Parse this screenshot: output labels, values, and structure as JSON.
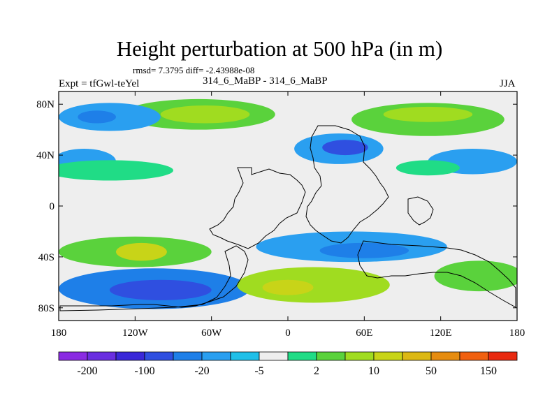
{
  "title": "Height perturbation at 500 hPa (in m)",
  "stats_line": "rmsd= 7.3795  diff= -2.43988e-08",
  "left_label": "Expt = tfGwl-teYel",
  "center_label": "314_6_MaBP - 314_6_MaBP",
  "right_label": "JJA",
  "chart_data": {
    "type": "heatmap",
    "title": "Height perturbation at 500 hPa (in m)",
    "xlabel": "",
    "ylabel": "",
    "xlim": [
      -180,
      180
    ],
    "ylim": [
      -90,
      90
    ],
    "x_ticks": [
      {
        "value": -180,
        "label": "180"
      },
      {
        "value": -120,
        "label": "120W"
      },
      {
        "value": -60,
        "label": "60W"
      },
      {
        "value": 0,
        "label": "0"
      },
      {
        "value": 60,
        "label": "60E"
      },
      {
        "value": 120,
        "label": "120E"
      },
      {
        "value": 180,
        "label": "180"
      }
    ],
    "y_ticks": [
      {
        "value": 80,
        "label": "80N"
      },
      {
        "value": 40,
        "label": "40N"
      },
      {
        "value": 0,
        "label": "0"
      },
      {
        "value": -40,
        "label": "40S"
      },
      {
        "value": -80,
        "label": "80S"
      }
    ],
    "colorbar": {
      "colors": [
        "#8a2be2",
        "#6a2ee0",
        "#3a28d8",
        "#2f4fe0",
        "#1e7fe8",
        "#2a9ff0",
        "#1fbfe8",
        "#eeeeee",
        "#20dc86",
        "#5ad23c",
        "#a0dc20",
        "#c8d418",
        "#dcb814",
        "#e68c10",
        "#f06010",
        "#e82a10"
      ],
      "labels": [
        {
          "after_index": 0,
          "text": "-200"
        },
        {
          "after_index": 2,
          "text": "-100"
        },
        {
          "after_index": 4,
          "text": "-20"
        },
        {
          "after_index": 6,
          "text": "-5"
        },
        {
          "after_index": 8,
          "text": "2"
        },
        {
          "after_index": 10,
          "text": "10"
        },
        {
          "after_index": 12,
          "text": "50"
        },
        {
          "after_index": 14,
          "text": "150"
        }
      ]
    },
    "anomaly_regions": [
      {
        "name": "nh-arctic-positive",
        "lon": -70,
        "lat": 72,
        "rlon": 60,
        "rlat": 12,
        "level": 9
      },
      {
        "name": "nh-arctic-positive-core",
        "lon": -65,
        "lat": 72,
        "rlon": 35,
        "rlat": 7,
        "level": 10
      },
      {
        "name": "nh-pacific-negative",
        "lon": -140,
        "lat": 70,
        "rlon": 40,
        "rlat": 11,
        "level": 5
      },
      {
        "name": "nh-pacific-negative-core",
        "lon": -150,
        "lat": 70,
        "rlon": 15,
        "rlat": 5,
        "level": 4
      },
      {
        "name": "nh-eurasia-positive",
        "lon": 110,
        "lat": 68,
        "rlon": 60,
        "rlat": 13,
        "level": 9
      },
      {
        "name": "nh-eurasia-positive-core",
        "lon": 110,
        "lat": 72,
        "rlon": 35,
        "rlat": 6,
        "level": 10
      },
      {
        "name": "nh-north-atlantic-negative",
        "lon": 40,
        "lat": 45,
        "rlon": 35,
        "rlat": 12,
        "level": 5
      },
      {
        "name": "nh-north-atlantic-negative-core",
        "lon": 45,
        "lat": 46,
        "rlon": 18,
        "rlat": 6,
        "level": 3
      },
      {
        "name": "nh-west-pacific-negative",
        "lon": -160,
        "lat": 35,
        "rlon": 25,
        "rlat": 10,
        "level": 5
      },
      {
        "name": "nh-midlat-positive",
        "lon": -140,
        "lat": 28,
        "rlon": 50,
        "rlat": 8,
        "level": 8
      },
      {
        "name": "nh-east-asia-negative",
        "lon": 145,
        "lat": 35,
        "rlon": 35,
        "rlat": 10,
        "level": 5
      },
      {
        "name": "nh-subtropic-positive",
        "lon": 110,
        "lat": 30,
        "rlon": 25,
        "rlat": 6,
        "level": 8
      },
      {
        "name": "sh-pacific-positive",
        "lon": -120,
        "lat": -36,
        "rlon": 60,
        "rlat": 12,
        "level": 9
      },
      {
        "name": "sh-pacific-positive-core",
        "lon": -115,
        "lat": -36,
        "rlon": 20,
        "rlat": 7,
        "level": 11
      },
      {
        "name": "sh-indian-negative",
        "lon": 50,
        "lat": -32,
        "rlon": 75,
        "rlat": 12,
        "level": 5
      },
      {
        "name": "sh-indian-negative-core",
        "lon": 60,
        "lat": -35,
        "rlon": 35,
        "rlat": 6,
        "level": 4
      },
      {
        "name": "sh-southern-ocean-negative",
        "lon": -105,
        "lat": -65,
        "rlon": 75,
        "rlat": 16,
        "level": 4
      },
      {
        "name": "sh-southern-ocean-negative-core",
        "lon": -100,
        "lat": -66,
        "rlon": 40,
        "rlat": 8,
        "level": 3
      },
      {
        "name": "sh-atlantic-positive",
        "lon": 20,
        "lat": -62,
        "rlon": 60,
        "rlat": 14,
        "level": 10
      },
      {
        "name": "sh-atlantic-positive-core",
        "lon": 0,
        "lat": -64,
        "rlon": 20,
        "rlat": 6,
        "level": 11
      },
      {
        "name": "sh-east-positive",
        "lon": 150,
        "lat": -55,
        "rlon": 35,
        "rlat": 12,
        "level": 9
      }
    ]
  }
}
